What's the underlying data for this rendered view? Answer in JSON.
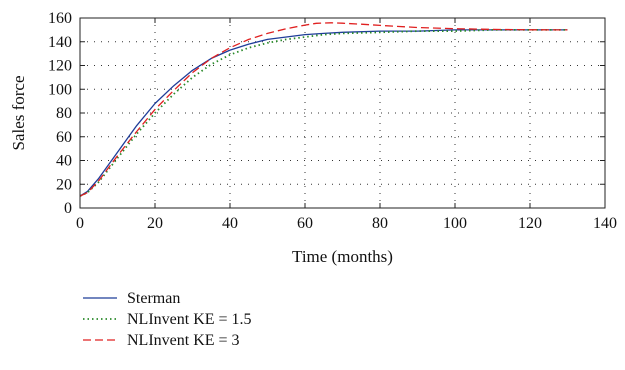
{
  "chart_data": {
    "type": "line",
    "title": "",
    "xlabel": "Time (months)",
    "ylabel": "Sales force",
    "xlim": [
      0,
      140
    ],
    "ylim": [
      0,
      160
    ],
    "xticks": [
      0,
      20,
      40,
      60,
      80,
      100,
      120,
      140
    ],
    "yticks": [
      0,
      20,
      40,
      60,
      80,
      100,
      120,
      140,
      160
    ],
    "grid": true,
    "legend_position": "below",
    "series": [
      {
        "name": "Sterman",
        "color": "#1f3d99",
        "style": "solid",
        "x": [
          0,
          2,
          5,
          10,
          15,
          20,
          25,
          30,
          35,
          40,
          45,
          50,
          55,
          60,
          65,
          70,
          80,
          90,
          100,
          110,
          120,
          130
        ],
        "y": [
          10,
          14,
          25,
          47,
          69,
          88,
          103,
          116,
          126,
          133,
          138,
          142,
          144,
          146,
          147,
          148,
          149,
          149,
          150,
          150,
          150,
          150
        ]
      },
      {
        "name": "NLInvent KE = 1.5",
        "color": "#2a8a2a",
        "style": "dotted",
        "x": [
          0,
          2,
          5,
          10,
          15,
          20,
          25,
          30,
          35,
          40,
          45,
          50,
          55,
          60,
          65,
          70,
          80,
          90,
          100,
          110,
          120,
          130
        ],
        "y": [
          10,
          13,
          22,
          42,
          62,
          80,
          96,
          110,
          121,
          129,
          135,
          139,
          142,
          144,
          146,
          147,
          148,
          149,
          149,
          150,
          150,
          150
        ]
      },
      {
        "name": "NLInvent KE = 3",
        "color": "#e02020",
        "style": "dashed",
        "x": [
          0,
          2,
          5,
          10,
          15,
          20,
          25,
          30,
          35,
          40,
          45,
          50,
          55,
          60,
          63,
          67,
          70,
          75,
          80,
          90,
          100,
          110,
          120,
          130
        ],
        "y": [
          10,
          13,
          23,
          44,
          64,
          83,
          99,
          114,
          126,
          135,
          142,
          147,
          151,
          154,
          155.5,
          156,
          155.6,
          154.8,
          153.8,
          152,
          151,
          150.4,
          150.1,
          150
        ]
      }
    ]
  }
}
